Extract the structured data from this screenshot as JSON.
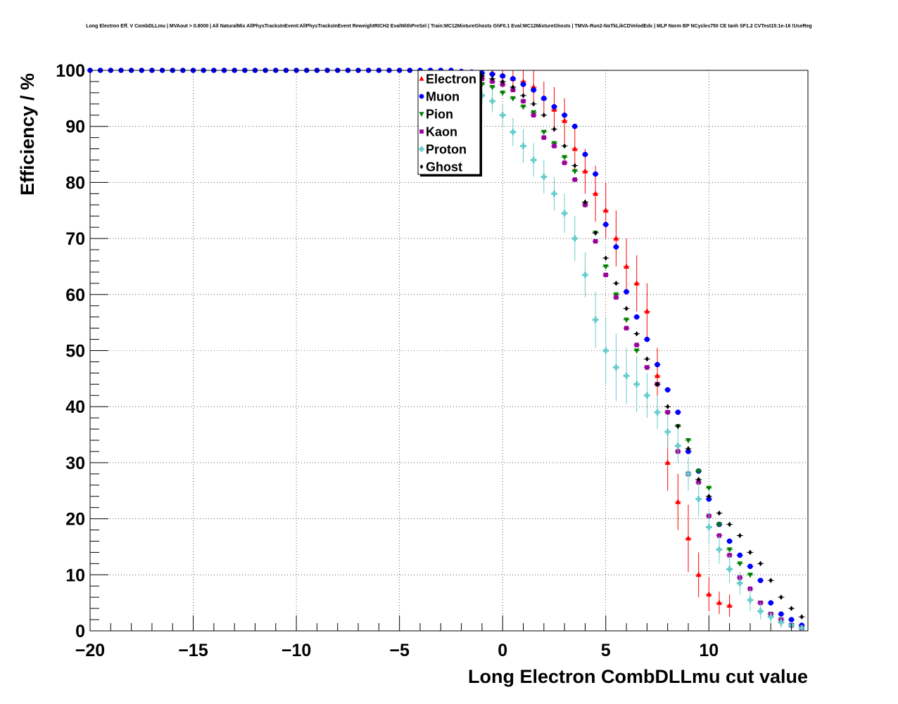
{
  "chart_data": {
    "type": "scatter",
    "title": "Long Electron Eff. V CombDLLmu | MVAout > 0.8000 | All NaturalMix AllPhysTracksInEvent:AllPhysTracksInEvent ReweightRICH2 EvalWithPreSel | Train:MC12MixtureGhosts GhF0.1 Eval:MC12MixtureGhosts | TMVA-Run2-NoTkLikCDVelodEdx | MLP Norm BP NCycles750 CE tanh SF1.2 CVTest15:1e-16 !UseReg",
    "xlabel": "Long Electron CombDLLmu cut value",
    "ylabel": "Efficiency / %",
    "xlim": [
      -20,
      14.8
    ],
    "ylim": [
      0,
      100
    ],
    "xticks": [
      -20,
      -15,
      -10,
      -5,
      0,
      5,
      10
    ],
    "xtick_labels": [
      "−20",
      "−15",
      "−10",
      "−5",
      "0",
      "5",
      "10"
    ],
    "yticks": [
      0,
      10,
      20,
      30,
      40,
      50,
      60,
      70,
      80,
      90,
      100
    ],
    "ytick_labels": [
      "0",
      "10",
      "20",
      "30",
      "40",
      "50",
      "60",
      "70",
      "80",
      "90",
      "100"
    ],
    "grid": true,
    "legend_position": "top-center",
    "series": [
      {
        "name": "Electron",
        "color": "#ff0000",
        "marker": "triangle-up",
        "x": [
          -0.5,
          0,
          0.5,
          1,
          1.5,
          2,
          2.5,
          3,
          3.5,
          4,
          4.5,
          5,
          5.5,
          6,
          6.5,
          7,
          7.5,
          8,
          8.5,
          9,
          9.5,
          10,
          10.5,
          11
        ],
        "y": [
          99.5,
          99,
          98.5,
          98,
          97,
          95,
          93,
          91,
          86,
          82,
          78,
          75,
          70,
          65,
          62,
          57,
          45.5,
          30,
          23,
          16.5,
          10,
          6.5,
          5,
          4.5
        ],
        "err": [
          1.5,
          2,
          2,
          2.5,
          3,
          3,
          4,
          4,
          4,
          4,
          5,
          5,
          5,
          5,
          5,
          5,
          5,
          5,
          5,
          6,
          4,
          3,
          2,
          2
        ]
      },
      {
        "name": "Muon",
        "color": "#0000ff",
        "marker": "circle",
        "x": [
          -20,
          -19.5,
          -19,
          -18.5,
          -18,
          -17.5,
          -17,
          -16.5,
          -16,
          -15.5,
          -15,
          -14.5,
          -14,
          -13.5,
          -13,
          -12.5,
          -12,
          -11.5,
          -11,
          -10.5,
          -10,
          -9.5,
          -9,
          -8.5,
          -8,
          -7.5,
          -7,
          -6.5,
          -6,
          -5.5,
          -5,
          -4.5,
          -4,
          -3.5,
          -3,
          -2.5,
          -2,
          -1.5,
          -1,
          -0.5,
          0,
          0.5,
          1,
          1.5,
          2,
          2.5,
          3,
          3.5,
          4,
          4.5,
          5,
          5.5,
          6,
          6.5,
          7,
          7.5,
          8,
          8.5,
          9,
          9.5,
          10,
          10.5,
          11,
          11.5,
          12,
          12.5,
          13,
          13.5,
          14,
          14.5
        ],
        "y": [
          100,
          100,
          100,
          100,
          100,
          100,
          100,
          100,
          100,
          100,
          100,
          100,
          100,
          100,
          100,
          100,
          100,
          100,
          100,
          100,
          100,
          100,
          100,
          100,
          100,
          100,
          100,
          100,
          100,
          100,
          100,
          100,
          100,
          100,
          100,
          100,
          99.8,
          99.7,
          99.5,
          99.3,
          99,
          98.5,
          97.5,
          96.5,
          95,
          93.5,
          92,
          90,
          85,
          81.5,
          72.5,
          68.5,
          60.5,
          56,
          52,
          47.5,
          43,
          39,
          32,
          28.5,
          23.5,
          19,
          16,
          13.5,
          11.5,
          9,
          5,
          3,
          2,
          1
        ]
      },
      {
        "name": "Pion",
        "color": "#008000",
        "marker": "triangle-down",
        "x": [
          -1,
          -0.5,
          0,
          0.5,
          1,
          1.5,
          2,
          2.5,
          3,
          3.5,
          4,
          4.5,
          5,
          5.5,
          6,
          6.5,
          7,
          7.5,
          8,
          8.5,
          9,
          9.5,
          10,
          10.5,
          11,
          11.5,
          12,
          12.5,
          13,
          13.5,
          14,
          14.5
        ],
        "y": [
          97.5,
          97,
          96,
          95,
          93.5,
          92.5,
          89,
          87,
          84.5,
          82,
          76,
          71,
          65,
          60,
          55.5,
          50,
          47,
          44,
          39,
          36.5,
          34,
          28.5,
          25.5,
          19,
          14.5,
          12,
          10,
          5,
          3,
          2,
          1,
          0.5
        ]
      },
      {
        "name": "Kaon",
        "color": "#990099",
        "marker": "square",
        "x": [
          -1,
          -0.5,
          0,
          0.5,
          1,
          1.5,
          2,
          2.5,
          3,
          3.5,
          4,
          4.5,
          5,
          5.5,
          6,
          6.5,
          7,
          7.5,
          8,
          8.5,
          9,
          9.5,
          10,
          10.5,
          11,
          11.5,
          12,
          12.5,
          13,
          13.5,
          14,
          14.5
        ],
        "y": [
          98.5,
          98,
          97.5,
          96.5,
          94.5,
          92,
          88,
          86.5,
          83.5,
          80.5,
          76,
          69.5,
          63.5,
          59.5,
          54,
          51,
          47,
          44,
          39,
          32,
          28,
          26.5,
          20.5,
          17,
          13.5,
          9.5,
          7.5,
          5,
          3,
          2,
          1,
          0.5
        ]
      },
      {
        "name": "Proton",
        "color": "#66cccc",
        "marker": "cross",
        "x": [
          -1,
          -0.5,
          0,
          0.5,
          1,
          1.5,
          2,
          2.5,
          3,
          3.5,
          4,
          4.5,
          5,
          5.5,
          6,
          6.5,
          7,
          7.5,
          8,
          8.5,
          9,
          9.5,
          10,
          10.5,
          11,
          11.5,
          12,
          12.5,
          13,
          13.5,
          14,
          14.5
        ],
        "y": [
          95.5,
          94.5,
          92,
          89,
          86.5,
          84,
          81,
          78,
          74.5,
          70,
          63.5,
          55.5,
          50,
          47,
          45.5,
          44,
          42,
          39,
          35.5,
          33,
          28,
          23.5,
          18.5,
          14.5,
          11,
          8.5,
          5.5,
          3.5,
          2.5,
          1.5,
          1,
          0.5
        ],
        "err": [
          1.5,
          2,
          2,
          2.5,
          3,
          3,
          3,
          3,
          3.5,
          4,
          4,
          5,
          6,
          6,
          5,
          5,
          4,
          3,
          3,
          3,
          3,
          3,
          3,
          2.5,
          2.5,
          2,
          2,
          1.5,
          1,
          1,
          0.5,
          0.5
        ]
      },
      {
        "name": "Ghost",
        "color": "#000000",
        "marker": "diamond",
        "x": [
          -1,
          -0.5,
          0,
          0.5,
          1,
          1.5,
          2,
          2.5,
          3,
          3.5,
          4,
          4.5,
          5,
          5.5,
          6,
          6.5,
          7,
          7.5,
          8,
          8.5,
          9,
          9.5,
          10,
          10.5,
          11,
          11.5,
          12,
          12.5,
          13,
          13.5,
          14,
          14.5
        ],
        "y": [
          99,
          98.5,
          98,
          97,
          95.5,
          94,
          92,
          89.5,
          86.5,
          83,
          76.5,
          71,
          66.5,
          62,
          57.5,
          53,
          48.5,
          44,
          40,
          36.5,
          32.5,
          27,
          24,
          21,
          19,
          17,
          14,
          12,
          9,
          6,
          4,
          2.5
        ]
      }
    ]
  }
}
